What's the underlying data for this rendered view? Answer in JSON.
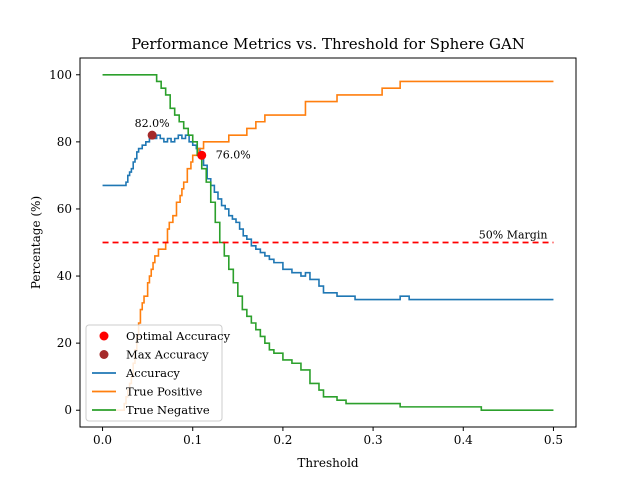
{
  "chart_data": {
    "type": "line",
    "title": "Performance Metrics vs. Threshold for Sphere GAN",
    "xlabel": "Threshold",
    "ylabel": "Percentage (%)",
    "xlim": [
      -0.025,
      0.525
    ],
    "ylim": [
      -5,
      105
    ],
    "xticks": [
      0.0,
      0.1,
      0.2,
      0.3,
      0.4,
      0.5
    ],
    "xtick_labels": [
      "0.0",
      "0.1",
      "0.2",
      "0.3",
      "0.4",
      "0.5"
    ],
    "yticks": [
      0,
      20,
      40,
      60,
      80,
      100
    ],
    "ytick_labels": [
      "0",
      "20",
      "40",
      "60",
      "80",
      "100"
    ],
    "grid": false,
    "legend": "bottom-left",
    "series": [
      {
        "name": "Accuracy",
        "color": "#1f77b4",
        "x": [
          0.0,
          0.024,
          0.026,
          0.028,
          0.03,
          0.032,
          0.034,
          0.036,
          0.038,
          0.04,
          0.044,
          0.048,
          0.052,
          0.056,
          0.06,
          0.064,
          0.068,
          0.072,
          0.076,
          0.08,
          0.084,
          0.088,
          0.092,
          0.096,
          0.1,
          0.104,
          0.108,
          0.112,
          0.116,
          0.12,
          0.124,
          0.128,
          0.132,
          0.136,
          0.14,
          0.144,
          0.148,
          0.152,
          0.156,
          0.16,
          0.165,
          0.17,
          0.175,
          0.18,
          0.185,
          0.19,
          0.2,
          0.21,
          0.22,
          0.225,
          0.23,
          0.24,
          0.245,
          0.25,
          0.26,
          0.265,
          0.28,
          0.3,
          0.32,
          0.33,
          0.34,
          0.5
        ],
        "y": [
          67,
          67,
          68,
          70,
          71,
          72,
          74,
          75,
          77,
          78,
          79,
          80,
          81,
          81,
          82,
          81,
          80,
          81,
          80,
          81,
          82,
          81,
          82,
          80,
          79,
          78,
          76,
          73,
          69,
          67,
          65,
          63,
          61,
          60,
          58,
          57,
          56,
          54,
          52,
          51,
          49,
          48,
          47,
          46,
          45,
          44,
          42,
          41,
          40,
          41,
          39,
          37,
          35,
          35,
          34,
          34,
          33,
          33,
          33,
          34,
          33,
          33
        ]
      },
      {
        "name": "True Positive",
        "color": "#ff7f0e",
        "x": [
          0.0,
          0.02,
          0.024,
          0.026,
          0.028,
          0.03,
          0.032,
          0.034,
          0.036,
          0.038,
          0.04,
          0.042,
          0.044,
          0.046,
          0.05,
          0.052,
          0.054,
          0.056,
          0.058,
          0.062,
          0.064,
          0.066,
          0.07,
          0.072,
          0.074,
          0.076,
          0.078,
          0.08,
          0.082,
          0.086,
          0.088,
          0.09,
          0.094,
          0.098,
          0.1,
          0.106,
          0.112,
          0.12,
          0.14,
          0.16,
          0.165,
          0.17,
          0.175,
          0.18,
          0.2,
          0.22,
          0.225,
          0.26,
          0.28,
          0.3,
          0.31,
          0.32,
          0.33,
          0.4,
          0.5
        ],
        "y": [
          0,
          0,
          2,
          4,
          6,
          8,
          10,
          14,
          18,
          22,
          26,
          30,
          32,
          34,
          38,
          40,
          42,
          44,
          46,
          48,
          48,
          48,
          50,
          54,
          56,
          56,
          58,
          58,
          62,
          64,
          66,
          68,
          72,
          74,
          76,
          78,
          80,
          80,
          82,
          84,
          84,
          86,
          86,
          88,
          88,
          88,
          92,
          94,
          94,
          94,
          96,
          96,
          98,
          98,
          98
        ]
      },
      {
        "name": "True Negative",
        "color": "#2ca02c",
        "x": [
          0.0,
          0.055,
          0.06,
          0.065,
          0.07,
          0.075,
          0.08,
          0.085,
          0.09,
          0.095,
          0.1,
          0.105,
          0.11,
          0.115,
          0.12,
          0.125,
          0.13,
          0.135,
          0.14,
          0.145,
          0.15,
          0.155,
          0.16,
          0.165,
          0.17,
          0.175,
          0.18,
          0.185,
          0.19,
          0.2,
          0.21,
          0.22,
          0.23,
          0.24,
          0.245,
          0.25,
          0.26,
          0.27,
          0.3,
          0.33,
          0.4,
          0.42,
          0.5
        ],
        "y": [
          100,
          100,
          98,
          96,
          94,
          90,
          88,
          86,
          84,
          82,
          80,
          76,
          72,
          68,
          62,
          56,
          50,
          46,
          42,
          38,
          34,
          30,
          28,
          26,
          24,
          22,
          20,
          18,
          17,
          15,
          14,
          12,
          8,
          6,
          4,
          4,
          3,
          2,
          2,
          1,
          1,
          0,
          0
        ]
      }
    ],
    "margin_line": {
      "label": "50% Margin",
      "y": 50,
      "x_start": 0.0,
      "x_end": 0.5,
      "color": "#ff0000"
    },
    "points": [
      {
        "name": "Optimal Accuracy",
        "x": 0.11,
        "y": 76,
        "label": "76.0%",
        "color": "#ff0000"
      },
      {
        "name": "Max Accuracy",
        "x": 0.055,
        "y": 82,
        "label": "82.0%",
        "color": "#a52a2a"
      }
    ]
  }
}
